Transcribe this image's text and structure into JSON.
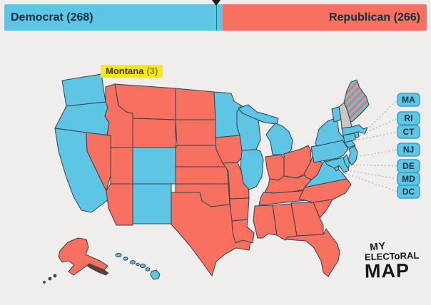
{
  "page": {
    "background": "#efeeec"
  },
  "bar": {
    "democrat": {
      "label": "Democrat (268)",
      "votes": 268
    },
    "republican": {
      "label": "Republican (266)",
      "votes": 266
    },
    "text_color": "#14303e",
    "marker_color": "#1a1a1a"
  },
  "tooltip": {
    "state_name": "Montana",
    "votes_label": "(3)",
    "background": "#f9e71e",
    "name_color": "#3b3703",
    "votes_color": "#8c860f"
  },
  "legend": {
    "items": [
      {
        "label": "MA"
      },
      {
        "label": "RI"
      },
      {
        "label": "CT"
      },
      {
        "label": "NJ"
      },
      {
        "label": "DE"
      },
      {
        "label": "MD"
      },
      {
        "label": "DC"
      }
    ],
    "box_border": "#38a0c4",
    "text_color": "#103448",
    "line_color": "#b5b3ae"
  },
  "logo": {
    "line1": "MY",
    "line2": "ELECToRAL",
    "line3": "MAP",
    "color": "#181512"
  },
  "map": {
    "border_color": "#33414f",
    "colors": {
      "D": "#5ec5e5",
      "R": "#f8705f",
      "U": "#c8c7c4",
      "island_dark": "#5d4037"
    },
    "states": [
      {
        "id": "WA",
        "party": "D"
      },
      {
        "id": "OR",
        "party": "D"
      },
      {
        "id": "CA",
        "party": "D"
      },
      {
        "id": "NV",
        "party": "R"
      },
      {
        "id": "ID",
        "party": "R"
      },
      {
        "id": "MT",
        "party": "R"
      },
      {
        "id": "WY",
        "party": "R"
      },
      {
        "id": "UT",
        "party": "R"
      },
      {
        "id": "CO",
        "party": "D"
      },
      {
        "id": "AZ",
        "party": "R"
      },
      {
        "id": "NM",
        "party": "D"
      },
      {
        "id": "ND",
        "party": "R"
      },
      {
        "id": "SD",
        "party": "R"
      },
      {
        "id": "NE",
        "party": "R"
      },
      {
        "id": "KS",
        "party": "R"
      },
      {
        "id": "OK",
        "party": "R"
      },
      {
        "id": "TX",
        "party": "R"
      },
      {
        "id": "MN",
        "party": "D"
      },
      {
        "id": "IA",
        "party": "R"
      },
      {
        "id": "MO",
        "party": "R"
      },
      {
        "id": "AR",
        "party": "R"
      },
      {
        "id": "LA",
        "party": "R"
      },
      {
        "id": "WI",
        "party": "D"
      },
      {
        "id": "IL",
        "party": "D"
      },
      {
        "id": "MIUP",
        "party": "D"
      },
      {
        "id": "MI",
        "party": "D"
      },
      {
        "id": "IN",
        "party": "R"
      },
      {
        "id": "OH",
        "party": "R"
      },
      {
        "id": "KY",
        "party": "R"
      },
      {
        "id": "TN",
        "party": "R"
      },
      {
        "id": "MS",
        "party": "R"
      },
      {
        "id": "AL",
        "party": "R"
      },
      {
        "id": "GA",
        "party": "R"
      },
      {
        "id": "FL",
        "party": "R"
      },
      {
        "id": "SC",
        "party": "R"
      },
      {
        "id": "NC",
        "party": "R"
      },
      {
        "id": "VA",
        "party": "D"
      },
      {
        "id": "WV",
        "party": "R"
      },
      {
        "id": "PA",
        "party": "D"
      },
      {
        "id": "NY",
        "party": "D"
      },
      {
        "id": "NJ",
        "party": "D"
      },
      {
        "id": "DE",
        "party": "D"
      },
      {
        "id": "MD",
        "party": "D"
      },
      {
        "id": "DC",
        "party": "D"
      },
      {
        "id": "CT",
        "party": "D"
      },
      {
        "id": "RI",
        "party": "D"
      },
      {
        "id": "MA",
        "party": "D"
      },
      {
        "id": "VT",
        "party": "D"
      },
      {
        "id": "NH",
        "party": "U"
      },
      {
        "id": "ME",
        "party": "split"
      },
      {
        "id": "AK",
        "party": "R"
      },
      {
        "id": "HI",
        "party": "D"
      }
    ]
  }
}
